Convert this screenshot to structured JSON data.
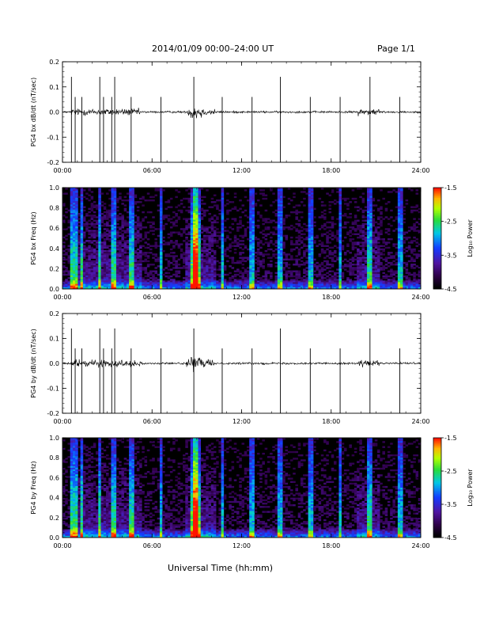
{
  "header": {
    "title": "2014/01/09  00:00–24:00 UT",
    "page": "Page 1/1"
  },
  "xlabel": "Universal Time (hh:mm)",
  "colors": {
    "trace": "#000000",
    "background": "#ffffff"
  },
  "chart_data": [
    {
      "type": "line",
      "ylabel": "PG4 bx dB/dt (nT/sec)",
      "xlim": [
        0,
        24
      ],
      "ylim": [
        -0.2,
        0.2
      ],
      "x_ticks": [
        "00:00",
        "06:00",
        "12:00",
        "18:00",
        "24:00"
      ],
      "y_ticks": [
        "0.2",
        "0.1",
        "0.0",
        "-0.1",
        "-0.2"
      ],
      "spikes_hours": [
        0.6,
        0.85,
        1.3,
        2.5,
        2.75,
        3.3,
        3.5,
        4.6,
        6.6,
        8.8,
        10.7,
        12.7,
        14.6,
        16.6,
        18.6,
        20.6,
        22.6
      ],
      "active_intervals": [
        [
          0.6,
          5.2
        ],
        [
          8.3,
          10.2
        ],
        [
          19.8,
          21.2
        ]
      ]
    },
    {
      "type": "heatmap",
      "ylabel": "PG4 bx Freq (Hz)",
      "xlim": [
        0,
        24
      ],
      "ylim": [
        0,
        1
      ],
      "x_ticks": [
        "00:00",
        "06:00",
        "12:00",
        "18:00",
        "24:00"
      ],
      "y_ticks": [
        "1.0",
        "0.8",
        "0.6",
        "0.4",
        "0.2",
        "0.0"
      ],
      "colorbar": {
        "label": "Log₁₀ Power",
        "range": [
          -4.5,
          -1.5
        ],
        "ticks": [
          "-1.5",
          "-2.5",
          "-3.5",
          "-4.5"
        ]
      },
      "bright_columns_hours": [
        0.6,
        0.85,
        1.3,
        2.5,
        3.3,
        3.5,
        4.6,
        6.6,
        8.8,
        8.9,
        10.7,
        12.7,
        14.6,
        16.6,
        18.6,
        20.6,
        22.6
      ]
    },
    {
      "type": "line",
      "ylabel": "PG4 by dB/dt (nT/sec)",
      "xlim": [
        0,
        24
      ],
      "ylim": [
        -0.2,
        0.2
      ],
      "x_ticks": [
        "00:00",
        "06:00",
        "12:00",
        "18:00",
        "24:00"
      ],
      "y_ticks": [
        "0.2",
        "0.1",
        "0.0",
        "-0.1",
        "-0.2"
      ],
      "spikes_hours": [
        0.6,
        0.85,
        1.3,
        2.5,
        2.75,
        3.3,
        3.5,
        4.6,
        6.6,
        8.8,
        10.7,
        12.7,
        14.6,
        16.6,
        18.6,
        20.6,
        22.6
      ],
      "active_intervals": [
        [
          0.6,
          5.2
        ],
        [
          8.3,
          10.2
        ],
        [
          19.8,
          21.2
        ]
      ]
    },
    {
      "type": "heatmap",
      "ylabel": "PG4 by Freq (Hz)",
      "xlim": [
        0,
        24
      ],
      "ylim": [
        0,
        1
      ],
      "x_ticks": [
        "00:00",
        "06:00",
        "12:00",
        "18:00",
        "24:00"
      ],
      "y_ticks": [
        "1.0",
        "0.8",
        "0.6",
        "0.4",
        "0.2",
        "0.0"
      ],
      "colorbar": {
        "label": "Log₁₀ Power",
        "range": [
          -4.5,
          -1.5
        ],
        "ticks": [
          "-1.5",
          "-2.5",
          "-3.5",
          "-4.5"
        ]
      },
      "bright_columns_hours": [
        0.6,
        0.85,
        1.3,
        2.5,
        3.3,
        3.5,
        4.6,
        6.6,
        8.8,
        8.9,
        10.7,
        12.7,
        14.6,
        16.6,
        18.6,
        20.6,
        22.6
      ]
    }
  ]
}
